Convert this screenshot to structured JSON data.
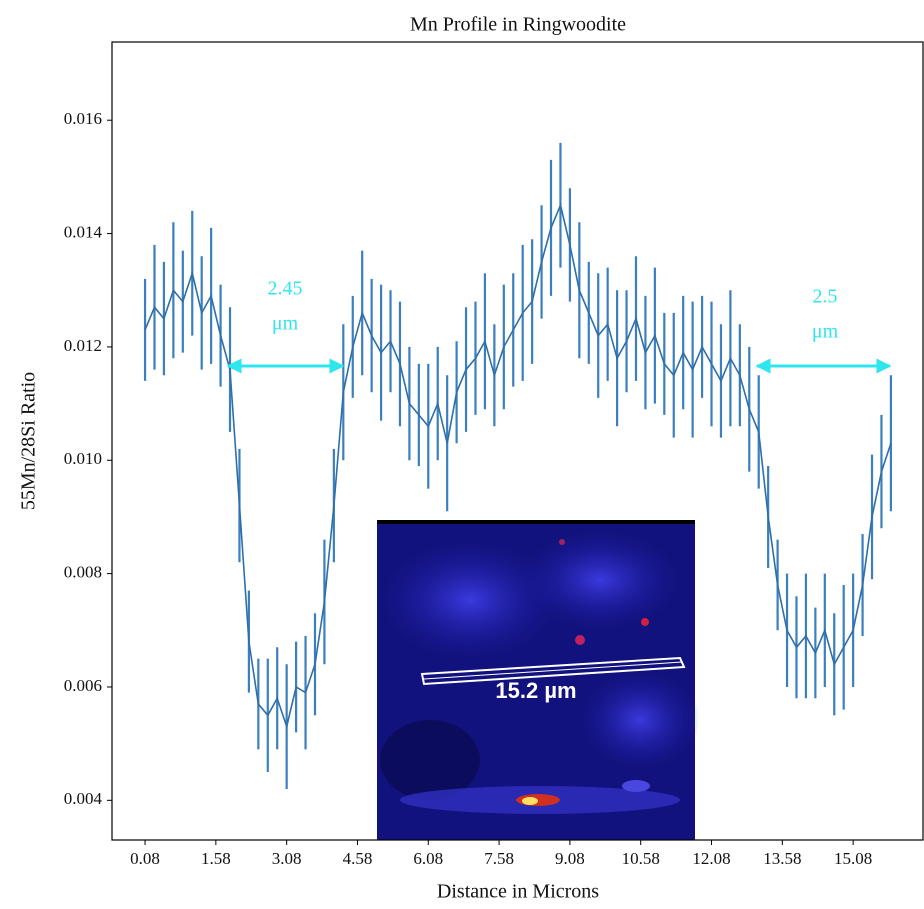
{
  "chart_data": {
    "type": "line",
    "title": "Mn Profile in Ringwoodite",
    "x_label": "Distance in Microns",
    "y_label": "55Mn/28Si Ratio",
    "color": "#3b7fbf",
    "x": [
      0.08,
      0.28,
      0.48,
      0.68,
      0.88,
      1.08,
      1.28,
      1.48,
      1.68,
      1.88,
      2.08,
      2.28,
      2.48,
      2.68,
      2.88,
      3.08,
      3.28,
      3.48,
      3.68,
      3.88,
      4.08,
      4.28,
      4.48,
      4.68,
      4.88,
      5.08,
      5.28,
      5.48,
      5.68,
      5.88,
      6.08,
      6.28,
      6.48,
      6.68,
      6.88,
      7.08,
      7.28,
      7.48,
      7.68,
      7.88,
      8.08,
      8.28,
      8.48,
      8.68,
      8.88,
      9.08,
      9.28,
      9.48,
      9.68,
      9.88,
      10.08,
      10.28,
      10.48,
      10.68,
      10.88,
      11.08,
      11.28,
      11.48,
      11.68,
      11.88,
      12.08,
      12.28,
      12.48,
      12.68,
      12.88,
      13.08,
      13.28,
      13.48,
      13.68,
      13.88,
      14.08,
      14.28,
      14.48,
      14.68,
      14.88,
      15.08,
      15.28,
      15.48,
      15.68,
      15.88
    ],
    "values": [
      0.0123,
      0.0127,
      0.0125,
      0.013,
      0.0128,
      0.0133,
      0.0126,
      0.0129,
      0.0122,
      0.0116,
      0.0092,
      0.0068,
      0.0057,
      0.0055,
      0.0058,
      0.0053,
      0.006,
      0.0059,
      0.0064,
      0.0075,
      0.0092,
      0.0112,
      0.012,
      0.0126,
      0.0122,
      0.0119,
      0.0121,
      0.0117,
      0.011,
      0.0108,
      0.0106,
      0.011,
      0.0103,
      0.0112,
      0.0116,
      0.0118,
      0.0121,
      0.0115,
      0.012,
      0.0123,
      0.0126,
      0.0128,
      0.0135,
      0.0141,
      0.0145,
      0.0138,
      0.013,
      0.0126,
      0.0122,
      0.0124,
      0.0118,
      0.0121,
      0.0125,
      0.0119,
      0.0122,
      0.0117,
      0.0115,
      0.0119,
      0.0116,
      0.012,
      0.0117,
      0.0114,
      0.0118,
      0.0115,
      0.0109,
      0.0105,
      0.009,
      0.0078,
      0.007,
      0.0067,
      0.0069,
      0.0066,
      0.007,
      0.0064,
      0.0067,
      0.007,
      0.0078,
      0.009,
      0.0098,
      0.0103
    ],
    "errors": [
      0.0009,
      0.0011,
      0.001,
      0.0012,
      0.0009,
      0.0011,
      0.001,
      0.0012,
      0.0009,
      0.0011,
      0.001,
      0.0009,
      0.0008,
      0.001,
      0.0009,
      0.0011,
      0.0008,
      0.001,
      0.0009,
      0.0011,
      0.001,
      0.0012,
      0.0009,
      0.0011,
      0.001,
      0.0012,
      0.0009,
      0.0011,
      0.001,
      0.0009,
      0.0011,
      0.001,
      0.0012,
      0.0009,
      0.0011,
      0.001,
      0.0012,
      0.0009,
      0.0011,
      0.001,
      0.0012,
      0.0011,
      0.001,
      0.0012,
      0.0011,
      0.001,
      0.0012,
      0.0009,
      0.0011,
      0.001,
      0.0012,
      0.0009,
      0.0011,
      0.001,
      0.0012,
      0.0009,
      0.0011,
      0.001,
      0.0012,
      0.0009,
      0.0011,
      0.001,
      0.0012,
      0.0009,
      0.0011,
      0.001,
      0.0009,
      0.0008,
      0.001,
      0.0009,
      0.0011,
      0.0008,
      0.001,
      0.0009,
      0.0011,
      0.001,
      0.0009,
      0.0011,
      0.001,
      0.0012
    ],
    "xlim": [
      -0.62,
      16.56
    ],
    "ylim": [
      0.0033,
      0.01738
    ],
    "xticks": [
      0.08,
      1.58,
      3.08,
      4.58,
      6.08,
      7.58,
      9.08,
      10.58,
      12.08,
      13.58,
      15.08
    ],
    "yticks": [
      0.004,
      0.006,
      0.008,
      {
        "value": 0.01,
        "label": "0.010"
      },
      0.012,
      0.014,
      0.016
    ],
    "annotations": [
      [
        "2.45",
        "μm"
      ],
      [
        "2.5",
        "μm"
      ]
    ],
    "inset_label": "15.2 µm"
  }
}
